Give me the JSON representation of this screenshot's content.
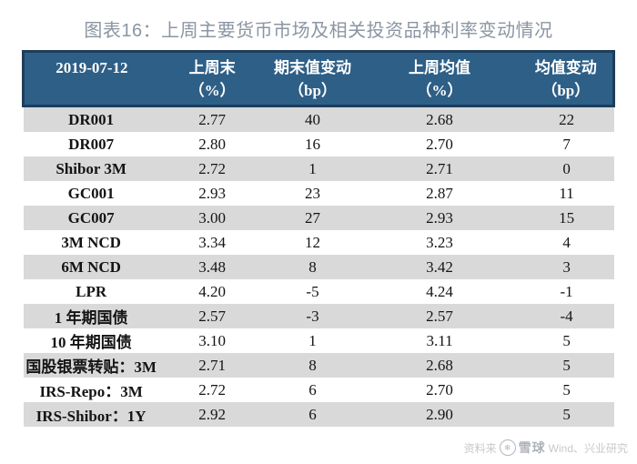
{
  "title": "图表16：上周主要货币市场及相关投资品种利率变动情况",
  "colors": {
    "header_bg": "#2e5f87",
    "header_border": "#1e3d5c",
    "header_text": "#ffffff",
    "stripe_row_bg": "#d9d9d9",
    "body_text": "#141414",
    "title_text": "#8b95a3",
    "watermark_text": "#b3b7bc"
  },
  "chart_data": {
    "type": "table",
    "title": "图表16：上周主要货币市场及相关投资品种利率变动情况",
    "columns": [
      {
        "l1": "2019-07-12",
        "l2": ""
      },
      {
        "l1": "上周末",
        "l2": "（%）"
      },
      {
        "l1": "期末值变动",
        "l2": "（bp）"
      },
      {
        "l1": "上周均值",
        "l2": "（%）"
      },
      {
        "l1": "均值变动",
        "l2": "（bp）"
      }
    ],
    "rows": [
      [
        "DR001",
        "2.77",
        "40",
        "2.68",
        "22"
      ],
      [
        "DR007",
        "2.80",
        "16",
        "2.70",
        "7"
      ],
      [
        "Shibor 3M",
        "2.72",
        "1",
        "2.71",
        "0"
      ],
      [
        "GC001",
        "2.93",
        "23",
        "2.87",
        "11"
      ],
      [
        "GC007",
        "3.00",
        "27",
        "2.93",
        "15"
      ],
      [
        "3M NCD",
        "3.34",
        "12",
        "3.23",
        "4"
      ],
      [
        "6M NCD",
        "3.48",
        "8",
        "3.42",
        "3"
      ],
      [
        "LPR",
        "4.20",
        "-5",
        "4.24",
        "-1"
      ],
      [
        "1 年期国债",
        "2.57",
        "-3",
        "2.57",
        "-4"
      ],
      [
        "10 年期国债",
        "3.10",
        "1",
        "3.11",
        "5"
      ],
      [
        "国股银票转贴：3M",
        "2.71",
        "8",
        "2.68",
        "5"
      ],
      [
        "IRS-Repo：3M",
        "2.72",
        "6",
        "2.70",
        "5"
      ],
      [
        "IRS-Shibor：1Y",
        "2.92",
        "6",
        "2.90",
        "5"
      ]
    ],
    "layout": {
      "striped": true,
      "stripe_pattern": "odd-rows-gray",
      "alignment": "center"
    }
  },
  "footer": {
    "source_prefix": "资料来",
    "brand": "雪球",
    "source_suffix": "Wind、兴业研究"
  }
}
